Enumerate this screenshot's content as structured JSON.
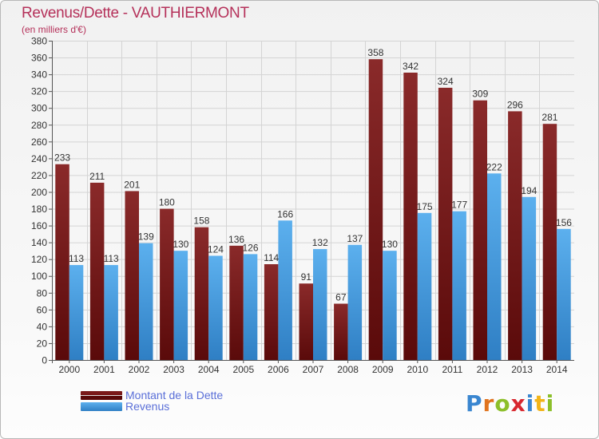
{
  "header": {
    "title": "Revenus/Dette - VAUTHIERMONT",
    "subtitle": "(en milliers d'€)"
  },
  "legend": {
    "items": [
      {
        "label": "Montant de la Dette",
        "color": "#7a1a1a"
      },
      {
        "label": "Revenus",
        "color": "#4a9de0"
      }
    ]
  },
  "logo": {
    "letters": [
      "P",
      "r",
      "o",
      "x",
      "i",
      "t",
      "i"
    ],
    "colors": [
      "#3a86d0",
      "#e0731e",
      "#8cbf2a",
      "#d8282f",
      "#3a86d0",
      "#f2b418",
      "#8cbf2a"
    ]
  },
  "chart_data": {
    "type": "bar",
    "categories": [
      "2000",
      "2001",
      "2002",
      "2003",
      "2004",
      "2005",
      "2006",
      "2007",
      "2008",
      "2009",
      "2010",
      "2011",
      "2012",
      "2013",
      "2014"
    ],
    "series": [
      {
        "name": "Montant de la Dette",
        "color": "#7a1a1a",
        "values": [
          233,
          211,
          201,
          180,
          158,
          136,
          114,
          91,
          67,
          358,
          342,
          324,
          309,
          296,
          281
        ]
      },
      {
        "name": "Revenus",
        "color": "#4a9de0",
        "values": [
          113,
          113,
          139,
          130,
          124,
          126,
          166,
          132,
          137,
          130,
          175,
          177,
          222,
          194,
          156
        ]
      }
    ],
    "ylim": [
      0,
      380
    ],
    "ytick_step": 20,
    "grid": true,
    "legend_position": "bottom-left",
    "xlabel": "",
    "ylabel": ""
  }
}
